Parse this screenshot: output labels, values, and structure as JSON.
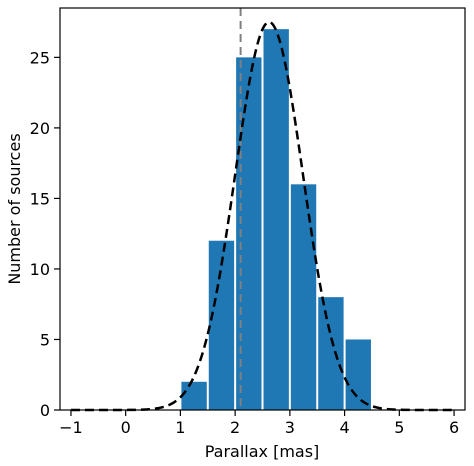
{
  "chart_data": {
    "type": "bar",
    "title": "",
    "xlabel": "Parallax [mas]",
    "ylabel": "Number of sources",
    "xlim": [
      -1.2,
      6.2
    ],
    "ylim": [
      0,
      28.5
    ],
    "xticks": [
      -1,
      0,
      1,
      2,
      3,
      4,
      5,
      6
    ],
    "yticks": [
      0,
      5,
      10,
      15,
      20,
      25
    ],
    "bin_width": 0.5,
    "bins": [
      {
        "x0": 1.0,
        "x1": 1.5,
        "value": 2
      },
      {
        "x0": 1.5,
        "x1": 2.0,
        "value": 12
      },
      {
        "x0": 2.0,
        "x1": 2.5,
        "value": 25
      },
      {
        "x0": 2.5,
        "x1": 3.0,
        "value": 27
      },
      {
        "x0": 3.0,
        "x1": 3.5,
        "value": 16
      },
      {
        "x0": 3.5,
        "x1": 4.0,
        "value": 8
      },
      {
        "x0": 4.0,
        "x1": 4.5,
        "value": 5
      }
    ],
    "bar_color": "#1f77b4",
    "gaussian_fit": {
      "amplitude": 27.5,
      "mean": 2.62,
      "sigma": 0.62,
      "color": "#000000",
      "style": "dashed"
    },
    "vertical_line": {
      "x": 2.1,
      "color": "#808080",
      "style": "dashed"
    },
    "grid": false,
    "legend": "none"
  }
}
